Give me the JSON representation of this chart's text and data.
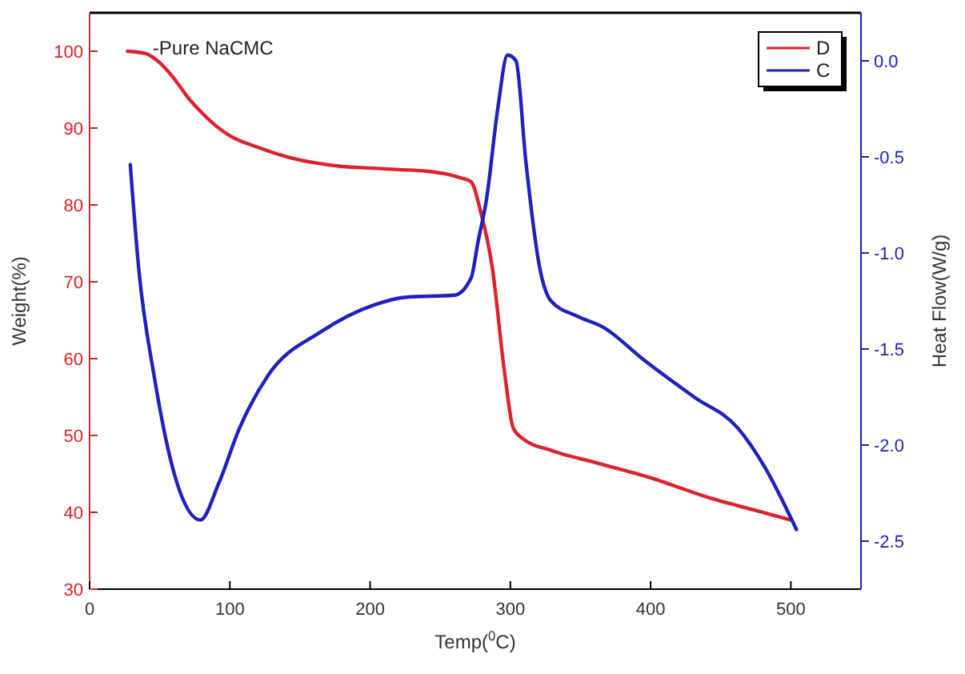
{
  "chart_data": {
    "type": "line",
    "title": "-Pure NaCMC",
    "xlabel": "Temp($^{0}$C)",
    "ylabel": "Weight(%)",
    "y2label": "Heat Flow(W/g)",
    "xlim": [
      0,
      550
    ],
    "xticks": [
      0,
      100,
      200,
      300,
      400,
      500
    ],
    "ylim": [
      30,
      105
    ],
    "yticks": [
      30,
      40,
      50,
      60,
      70,
      80,
      90,
      100
    ],
    "y2lim": [
      -2.75,
      0.25
    ],
    "y2ticks": [
      {
        "value": 0,
        "label": "0.0"
      },
      -0.5,
      {
        "value": -1,
        "label": "-1.0"
      },
      -1.5,
      {
        "value": -2,
        "label": "-2.0"
      },
      -2.5
    ],
    "legend": "top right",
    "grid": false,
    "marker": "none",
    "line_style": "solid",
    "series": [
      {
        "name": "D",
        "color": "#e0202a",
        "x": [
          27,
          40,
          50,
          60,
          70,
          80,
          90,
          100,
          120,
          140,
          160,
          180,
          200,
          220,
          240,
          255,
          265,
          272,
          279,
          287,
          296,
          302,
          308,
          330,
          360,
          400,
          440,
          480,
          500
        ],
        "values": [
          100,
          99.7,
          98.5,
          96.5,
          94,
          92,
          90.3,
          89,
          87.5,
          86.3,
          85.5,
          85,
          84.8,
          84.6,
          84.4,
          84,
          83.5,
          83,
          79,
          72,
          58,
          51,
          49.7,
          48,
          46.5,
          44.5,
          42,
          40,
          39
        ]
      },
      {
        "name": "C",
        "color": "#2020c0",
        "axis": "y2",
        "x": [
          29,
          35,
          46,
          62,
          79,
          92,
          107,
          127,
          165,
          203,
          226,
          260,
          272,
          277,
          283,
          291,
          298,
          304,
          311,
          321,
          329,
          348,
          367,
          394,
          431,
          462,
          481,
          504
        ],
        "values": [
          -0.54,
          -1.08,
          -1.64,
          -2.19,
          -2.39,
          -2.2,
          -1.91,
          -1.64,
          -1.41,
          -1.27,
          -1.23,
          -1.22,
          -1.13,
          -0.94,
          -0.72,
          -0.25,
          0.03,
          0,
          -0.52,
          -1.08,
          -1.25,
          -1.33,
          -1.39,
          -1.55,
          -1.75,
          -1.91,
          -2.11,
          -2.44
        ]
      }
    ]
  }
}
